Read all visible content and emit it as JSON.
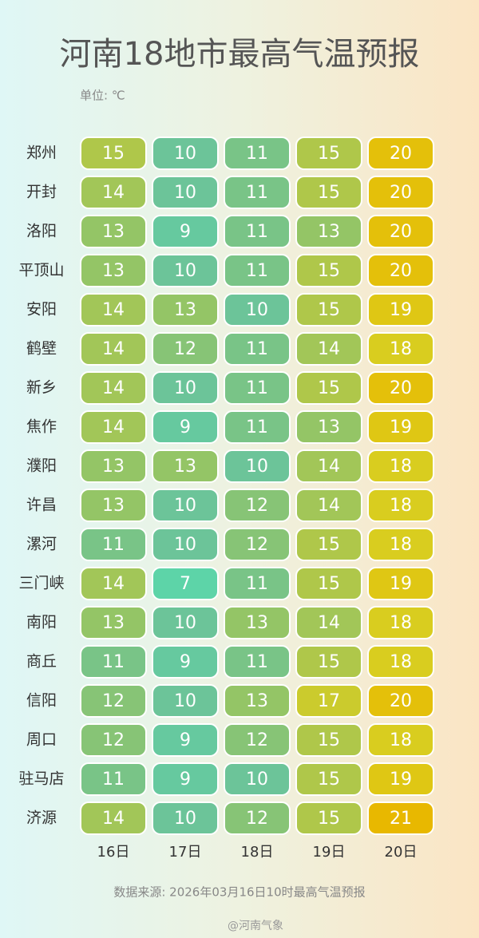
{
  "chart_data": {
    "type": "heatmap",
    "title": "河南18地市最高气温预报",
    "subtitle": "单位: ℃",
    "source": "数据来源: 2026年03月16日10时最高气温预报",
    "watermark": "@河南气象",
    "rows": [
      "郑州",
      "开封",
      "洛阳",
      "平顶山",
      "安阳",
      "鹤壁",
      "新乡",
      "焦作",
      "濮阳",
      "许昌",
      "漯河",
      "三门峡",
      "南阳",
      "商丘",
      "信阳",
      "周口",
      "驻马店",
      "济源"
    ],
    "columns": [
      "16日",
      "17日",
      "18日",
      "19日",
      "20日"
    ],
    "values": [
      [
        15,
        10,
        11,
        15,
        20
      ],
      [
        14,
        10,
        11,
        15,
        20
      ],
      [
        13,
        9,
        11,
        13,
        20
      ],
      [
        13,
        10,
        11,
        15,
        20
      ],
      [
        14,
        13,
        10,
        15,
        19
      ],
      [
        14,
        12,
        11,
        14,
        18
      ],
      [
        14,
        10,
        11,
        15,
        20
      ],
      [
        14,
        9,
        11,
        13,
        19
      ],
      [
        13,
        13,
        10,
        14,
        18
      ],
      [
        13,
        10,
        12,
        14,
        18
      ],
      [
        11,
        10,
        12,
        15,
        18
      ],
      [
        14,
        7,
        11,
        15,
        19
      ],
      [
        13,
        10,
        13,
        14,
        18
      ],
      [
        11,
        9,
        11,
        15,
        18
      ],
      [
        12,
        10,
        13,
        17,
        20
      ],
      [
        12,
        9,
        12,
        15,
        18
      ],
      [
        11,
        9,
        10,
        15,
        19
      ],
      [
        14,
        10,
        12,
        15,
        21
      ]
    ],
    "colors": [
      "#5dd4a8",
      "#69c49c",
      "#8fc46c",
      "#b4c844",
      "#dccd1c",
      "#e8b800"
    ]
  }
}
